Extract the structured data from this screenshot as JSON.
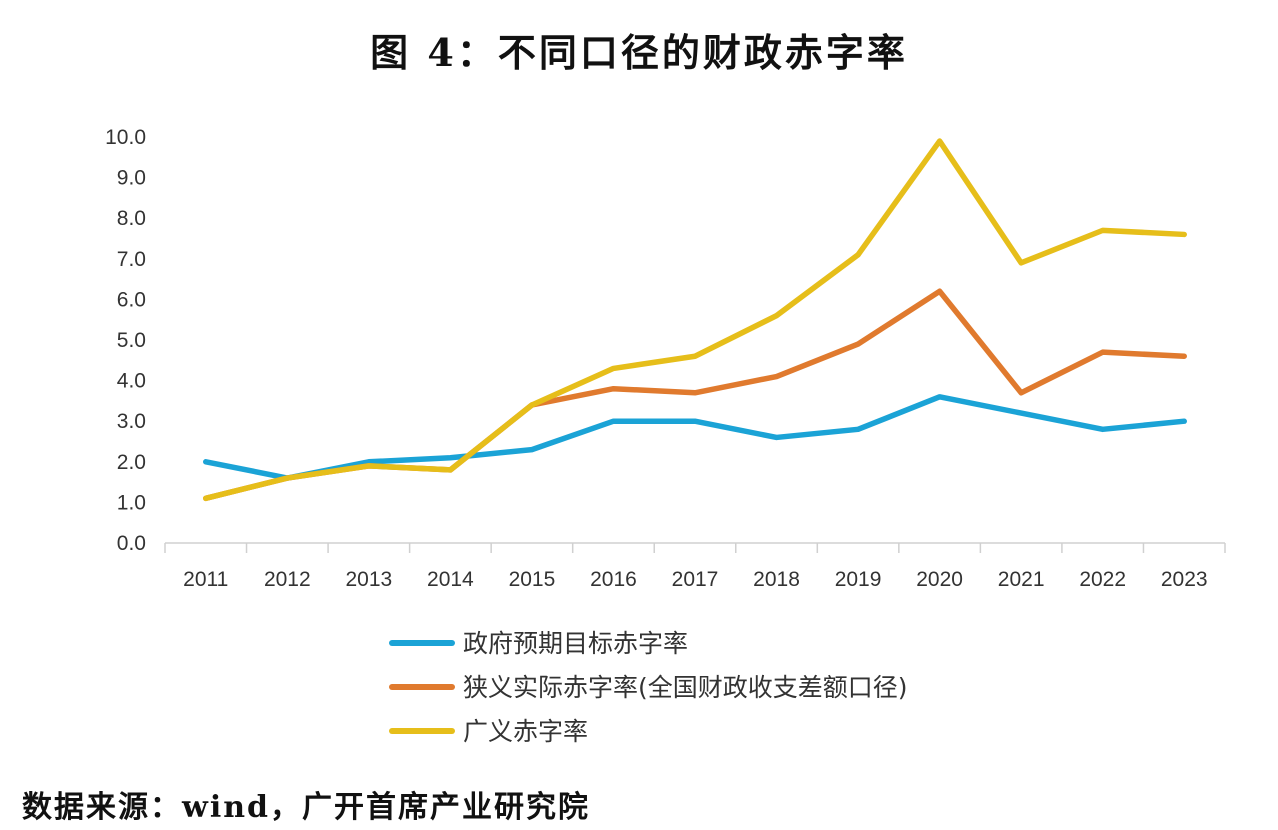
{
  "title": "图 4：不同口径的财政赤字率",
  "source": "数据来源：wind，广开首席产业研究院",
  "chart_data": {
    "type": "line",
    "title": "图 4：不同口径的财政赤字率",
    "xlabel": "",
    "ylabel": "",
    "ylim": [
      0,
      10
    ],
    "y_ticks": [
      "0.0",
      "1.0",
      "2.0",
      "3.0",
      "4.0",
      "5.0",
      "6.0",
      "7.0",
      "8.0",
      "9.0",
      "10.0"
    ],
    "categories": [
      "2011",
      "2012",
      "2013",
      "2014",
      "2015",
      "2016",
      "2017",
      "2018",
      "2019",
      "2020",
      "2021",
      "2022",
      "2023"
    ],
    "grid": false,
    "legend_position": "bottom",
    "series": [
      {
        "name": "政府预期目标赤字率",
        "color": "#1BA3D6",
        "values": [
          2.0,
          1.6,
          2.0,
          2.1,
          2.3,
          3.0,
          3.0,
          2.6,
          2.8,
          3.6,
          3.2,
          2.8,
          3.0
        ]
      },
      {
        "name": "狭义实际赤字率(全国财政收支差额口径)",
        "color": "#E07A2E",
        "values": [
          1.1,
          1.6,
          1.9,
          1.8,
          3.4,
          3.8,
          3.7,
          4.1,
          4.9,
          6.2,
          3.7,
          4.7,
          4.6
        ]
      },
      {
        "name": "广义赤字率",
        "color": "#E6BE1A",
        "values": [
          1.1,
          1.6,
          1.9,
          1.8,
          3.4,
          4.3,
          4.6,
          5.6,
          7.1,
          9.9,
          6.9,
          7.7,
          7.6
        ]
      }
    ]
  }
}
